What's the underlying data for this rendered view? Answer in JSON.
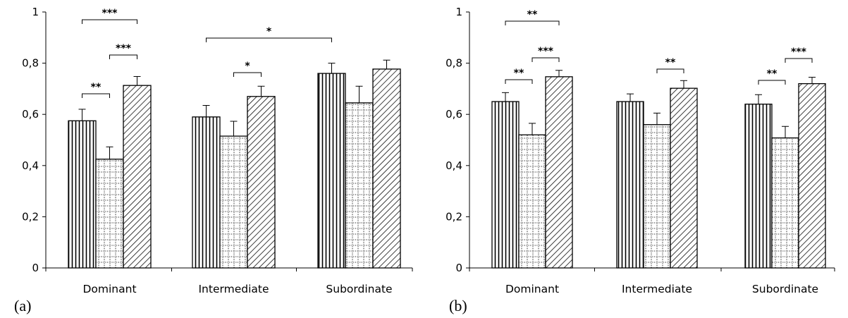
{
  "chart_data": [
    {
      "type": "bar",
      "panel_label": "(a)",
      "categories": [
        "Dominant",
        "Intermediate",
        "Subordinate"
      ],
      "ylim": [
        0,
        1
      ],
      "yticks": [
        "0",
        "0,2",
        "0,4",
        "0,6",
        "0,8",
        "1"
      ],
      "series": [
        {
          "pattern": "vertical-lines",
          "values": [
            0.575,
            0.59,
            0.76
          ],
          "errors": [
            0.045,
            0.045,
            0.04
          ]
        },
        {
          "pattern": "dotted-grid",
          "values": [
            0.425,
            0.515,
            0.645
          ],
          "errors": [
            0.048,
            0.058,
            0.065
          ]
        },
        {
          "pattern": "diagonal-lines",
          "values": [
            0.713,
            0.67,
            0.777
          ],
          "errors": [
            0.035,
            0.04,
            0.035
          ]
        }
      ],
      "significance": [
        {
          "category": 0,
          "from": 0,
          "to": 1,
          "label": "**"
        },
        {
          "category": 0,
          "from": 1,
          "to": 2,
          "label": "***"
        },
        {
          "category": 0,
          "from": 0,
          "to": 2,
          "label": "***"
        },
        {
          "category": 1,
          "from": 1,
          "to": 2,
          "label": "*"
        },
        {
          "category": 1,
          "from": 0,
          "to_category": 2,
          "to": 0,
          "label": "*"
        }
      ],
      "grid": false,
      "legend": "none"
    },
    {
      "type": "bar",
      "panel_label": "(b)",
      "categories": [
        "Dominant",
        "Intermediate",
        "Subordinate"
      ],
      "ylim": [
        0,
        1
      ],
      "yticks": [
        "0",
        "0,2",
        "0,4",
        "0,6",
        "0,8",
        "1"
      ],
      "series": [
        {
          "pattern": "vertical-lines",
          "values": [
            0.65,
            0.65,
            0.64
          ],
          "errors": [
            0.035,
            0.03,
            0.037
          ]
        },
        {
          "pattern": "dotted-grid",
          "values": [
            0.52,
            0.56,
            0.508
          ],
          "errors": [
            0.045,
            0.045,
            0.045
          ]
        },
        {
          "pattern": "diagonal-lines",
          "values": [
            0.747,
            0.702,
            0.72
          ],
          "errors": [
            0.025,
            0.03,
            0.025
          ]
        }
      ],
      "significance": [
        {
          "category": 0,
          "from": 0,
          "to": 1,
          "label": "**"
        },
        {
          "category": 0,
          "from": 1,
          "to": 2,
          "label": "***"
        },
        {
          "category": 0,
          "from": 0,
          "to": 2,
          "label": "**"
        },
        {
          "category": 1,
          "from": 1,
          "to": 2,
          "label": "**"
        },
        {
          "category": 2,
          "from": 0,
          "to": 1,
          "label": "**"
        },
        {
          "category": 2,
          "from": 1,
          "to": 2,
          "label": "***"
        }
      ],
      "grid": false,
      "legend": "none"
    }
  ]
}
